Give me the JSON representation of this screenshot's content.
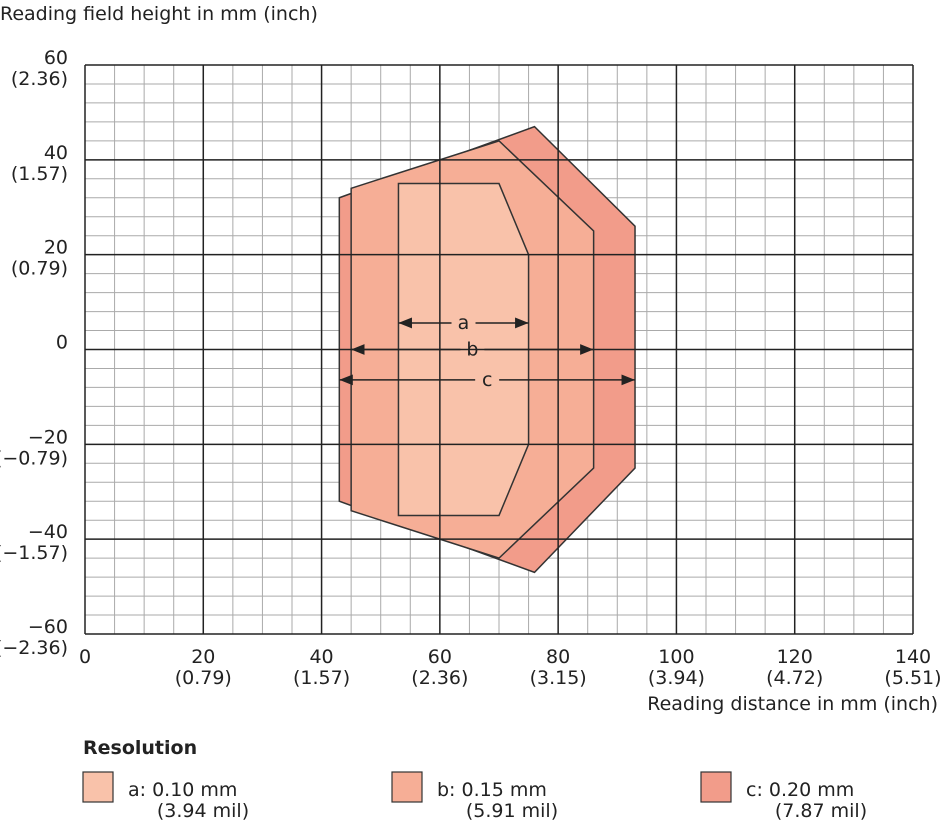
{
  "chart_data": {
    "type": "polygon",
    "y_label": "Reading field height in mm (inch)",
    "x_label": "Reading distance in mm (inch)",
    "xlim": [
      0,
      140
    ],
    "ylim": [
      -60,
      60
    ],
    "xticks": [
      0,
      20,
      40,
      60,
      80,
      100,
      120,
      140
    ],
    "xtick_inch_labels": [
      null,
      "(0.79)",
      "(1.57)",
      "(2.36)",
      "(3.15)",
      "(3.94)",
      "(4.72)",
      "(5.51)"
    ],
    "yticks": [
      60,
      40,
      20,
      0,
      {
        "value": -20,
        "label": "−20"
      },
      {
        "value": -40,
        "label": "−40"
      },
      {
        "value": -60,
        "label": "−60"
      }
    ],
    "ytick_inch_labels": [
      "(2.36)",
      "(1.57)",
      "(0.79)",
      null,
      "(−0.79)",
      "(−1.57)",
      "(−2.36)"
    ],
    "grid": true,
    "minor_step_x": 5,
    "minor_step_y": 4,
    "legend_title": "Resolution",
    "series": [
      {
        "name": "c: 0.20 mm",
        "sublabel": "(7.87 mil)",
        "color": "#f29c8a",
        "x": [
          43,
          76,
          93,
          93,
          76,
          43
        ],
        "y": [
          32,
          47,
          26,
          -25,
          -47,
          -32
        ],
        "arrow": {
          "label": "c",
          "y": -6.4,
          "x": [
            43,
            93
          ]
        }
      },
      {
        "name": "b: 0.15 mm",
        "sublabel": "(5.91 mil)",
        "color": "#f6ae96",
        "x": [
          45,
          70,
          86,
          86,
          70,
          45
        ],
        "y": [
          34,
          44,
          25,
          -25,
          -44,
          -34
        ],
        "arrow": {
          "label": "b",
          "y": 0,
          "x": [
            45,
            86
          ]
        }
      },
      {
        "name": "a: 0.10 mm",
        "sublabel": "(3.94 mil)",
        "color": "#f9c2aa",
        "x": [
          53,
          70,
          75,
          75,
          70,
          53
        ],
        "y": [
          35,
          35,
          20,
          -20,
          -35,
          -35
        ],
        "arrow": {
          "label": "a",
          "y": 5.6,
          "x": [
            53,
            75
          ]
        }
      }
    ]
  }
}
